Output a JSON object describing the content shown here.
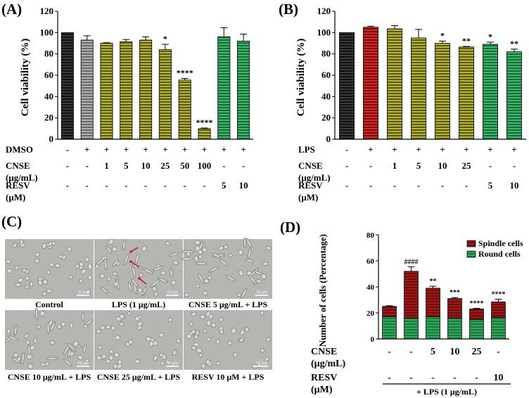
{
  "colors": {
    "black": "#1a1a1a",
    "gray": "#8c8c8c",
    "olive": "#8c8c2a",
    "olive_dark": "#6e6e1c",
    "green": "#2e9c55",
    "red": "#c41a1a",
    "dark_red": "#8b1414",
    "micrograph_bg": "#b6b6b2"
  },
  "chart_data": [
    {
      "panel": "(A)",
      "type": "bar",
      "ylabel": "Cell viability (%)",
      "ylim": [
        0,
        120
      ],
      "yticks": [
        "0",
        "20",
        "40",
        "60",
        "80",
        "100",
        "120"
      ],
      "values": [
        100,
        93,
        90,
        91.5,
        93,
        84,
        55.5,
        10,
        96,
        92
      ],
      "errors": [
        0,
        4,
        0.5,
        2,
        3,
        5,
        1.5,
        0.5,
        8.5,
        6.5
      ],
      "significance": [
        "",
        "",
        "",
        "",
        "",
        "*",
        "****",
        "****",
        "",
        ""
      ],
      "bar_styles": [
        "black",
        "gray",
        "olive",
        "olive",
        "olive",
        "olive",
        "olive",
        "olive",
        "green",
        "green"
      ],
      "condition_rows": [
        {
          "label": "DMSO",
          "sublabel": "",
          "values": [
            "-",
            "+",
            "+",
            "+",
            "+",
            "+",
            "+",
            "+",
            "+",
            "+"
          ]
        },
        {
          "label": "CNSE",
          "sublabel": "(μg/mL)",
          "values": [
            "-",
            "-",
            "1",
            "5",
            "10",
            "25",
            "50",
            "100",
            "-",
            "-"
          ]
        },
        {
          "label": "RESV",
          "sublabel": "(μM)",
          "values": [
            "-",
            "-",
            "-",
            "-",
            "-",
            "-",
            "-",
            "-",
            "5",
            "10"
          ]
        }
      ]
    },
    {
      "panel": "(B)",
      "type": "bar",
      "ylabel": "Cell viability (%)",
      "ylim": [
        0,
        120
      ],
      "yticks": [
        "0",
        "20",
        "40",
        "60",
        "80",
        "100",
        "120"
      ],
      "values": [
        100,
        105,
        103.5,
        95,
        90,
        86.5,
        89,
        82
      ],
      "errors": [
        0,
        1,
        3,
        8,
        2,
        0.5,
        2,
        2.5
      ],
      "significance": [
        "",
        "",
        "",
        "",
        "*",
        "**",
        "*",
        "**"
      ],
      "bar_styles": [
        "black",
        "red",
        "olive",
        "olive",
        "olive",
        "olive",
        "green",
        "green"
      ],
      "condition_rows": [
        {
          "label": "LPS",
          "sublabel": "",
          "values": [
            "-",
            "+",
            "+",
            "+",
            "+",
            "+",
            "+",
            "+"
          ]
        },
        {
          "label": "CNSE",
          "sublabel": "(μg/mL)",
          "values": [
            "-",
            "-",
            "1",
            "5",
            "10",
            "25",
            "-",
            "-"
          ]
        },
        {
          "label": "RESV",
          "sublabel": "(μM)",
          "values": [
            "-",
            "-",
            "-",
            "-",
            "-",
            "-",
            "5",
            "10"
          ]
        }
      ]
    },
    {
      "panel": "(D)",
      "type": "bar",
      "stacked": true,
      "ylabel": "Number of cells (Percentage)",
      "ylim": [
        0,
        80
      ],
      "yticks": [
        "0",
        "20",
        "40",
        "60",
        "80"
      ],
      "series": [
        {
          "name": "Round cells",
          "values": [
            17,
            16,
            17,
            16,
            15,
            16.5
          ]
        },
        {
          "name": "Spindle cells",
          "values": [
            8,
            36,
            22,
            15,
            8,
            12
          ]
        }
      ],
      "errors": [
        0.5,
        3.5,
        1.5,
        0.8,
        0.5,
        2
      ],
      "significance": [
        "",
        "####",
        "**",
        "***",
        "****",
        "****"
      ],
      "legend_placement": "top-right",
      "condition_rows": [
        {
          "label": "CNSE",
          "sublabel": "(μg/mL)",
          "values": [
            "-",
            "-",
            "5",
            "10",
            "25",
            "-"
          ]
        },
        {
          "label": "RESV",
          "sublabel": "(μM)",
          "values": [
            "-",
            "-",
            "-",
            "-",
            "-",
            "10"
          ]
        }
      ],
      "footer": "+ LPS (1 μg/mL)"
    }
  ],
  "micrographs": {
    "panel": "(C)",
    "captions": [
      "Control",
      "LPS (1 μg/mL)",
      "CNSE 5 μg/mL + LPS",
      "CNSE 10 μg/mL + LPS",
      "CNSE 25 μg/mL + LPS",
      "RESV 10 μM + LPS"
    ],
    "scale_label": "10 μm"
  }
}
